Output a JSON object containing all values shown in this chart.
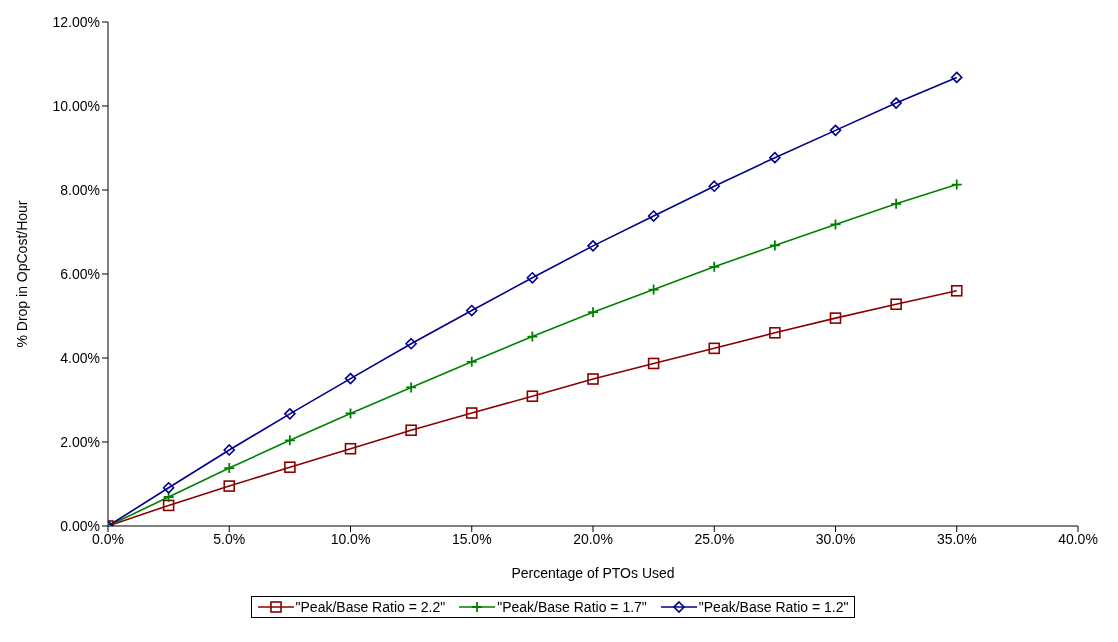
{
  "chart_data": {
    "type": "line",
    "xlabel": "Percentage of PTOs Used",
    "ylabel": "% Drop in OpCost/Hour",
    "x": [
      0,
      2.5,
      5,
      7.5,
      10,
      12.5,
      15,
      17.5,
      20,
      22.5,
      25,
      27.5,
      30,
      32.5,
      35
    ],
    "series": [
      {
        "name": "\"Peak/Base Ratio = 2.2\"",
        "color": "#8b0000",
        "marker": "square",
        "values": [
          0,
          0.49,
          0.95,
          1.4,
          1.84,
          2.28,
          2.69,
          3.09,
          3.5,
          3.87,
          4.23,
          4.6,
          4.95,
          5.28,
          5.6
        ]
      },
      {
        "name": "\"Peak/Base Ratio = 1.7\"",
        "color": "#008000",
        "marker": "cross",
        "values": [
          0,
          0.69,
          1.38,
          2.04,
          2.68,
          3.3,
          3.91,
          4.51,
          5.09,
          5.63,
          6.17,
          6.68,
          7.18,
          7.67,
          8.13
        ]
      },
      {
        "name": "\"Peak/Base Ratio = 1.2\"",
        "color": "#00008b",
        "marker": "diamond",
        "values": [
          0,
          0.91,
          1.81,
          2.67,
          3.51,
          4.34,
          5.13,
          5.91,
          6.67,
          7.38,
          8.09,
          8.77,
          9.42,
          10.07,
          10.68
        ]
      }
    ],
    "xlim": [
      0,
      40
    ],
    "xticks": [
      {
        "value": 0,
        "label": "0.0%"
      },
      {
        "value": 5,
        "label": "5.0%"
      },
      {
        "value": 10,
        "label": "10.0%"
      },
      {
        "value": 15,
        "label": "15.0%"
      },
      {
        "value": 20,
        "label": "20.0%"
      },
      {
        "value": 25,
        "label": "25.0%"
      },
      {
        "value": 30,
        "label": "30.0%"
      },
      {
        "value": 35,
        "label": "35.0%"
      },
      {
        "value": 40,
        "label": "40.0%"
      }
    ],
    "ylim": [
      0,
      12
    ],
    "yticks": [
      {
        "value": 0,
        "label": "0.00%"
      },
      {
        "value": 2,
        "label": "2.00%"
      },
      {
        "value": 4,
        "label": "4.00%"
      },
      {
        "value": 6,
        "label": "6.00%"
      },
      {
        "value": 8,
        "label": "8.00%"
      },
      {
        "value": 10,
        "label": "10.00%"
      },
      {
        "value": 12,
        "label": "12.00%"
      }
    ],
    "grid": false,
    "legend": "bottom",
    "line_style": "solid"
  }
}
